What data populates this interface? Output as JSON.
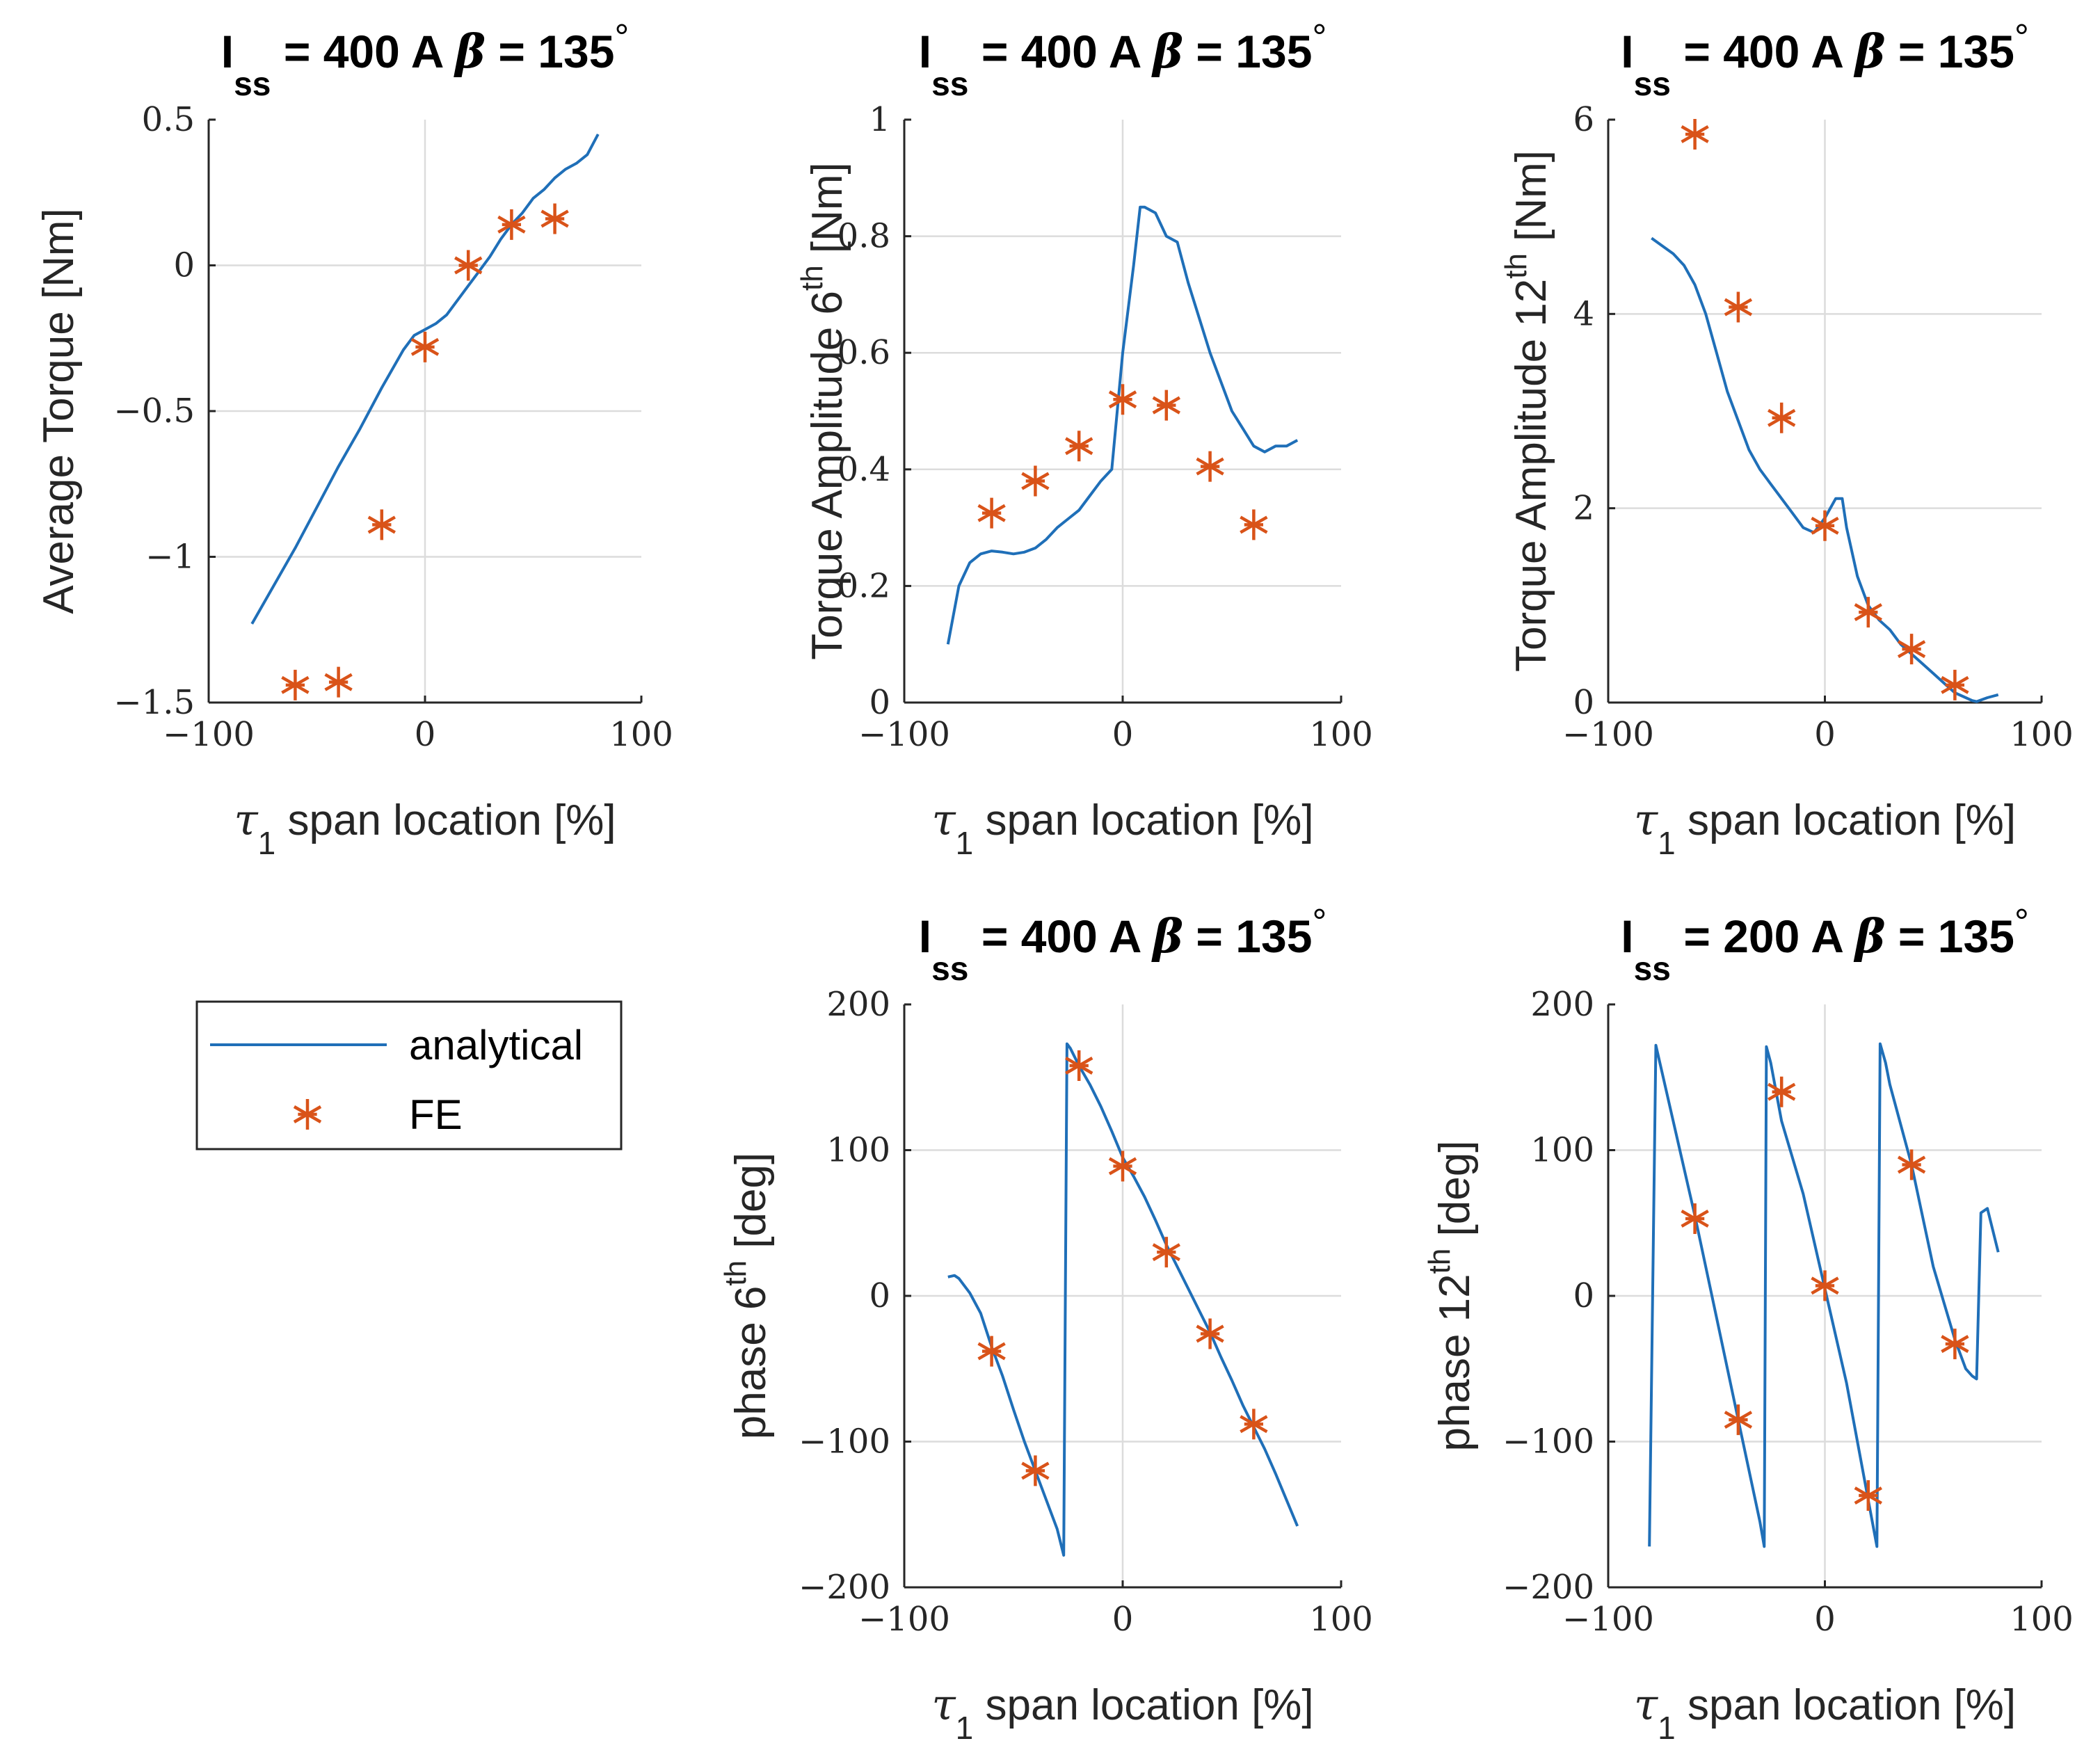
{
  "colors": {
    "analytical": "#1f6fb8",
    "fe": "#d95319"
  },
  "legend": {
    "analytical_label": "analytical",
    "fe_label": "FE"
  },
  "chart_data": [
    {
      "type": "line",
      "title": {
        "main": "I",
        "sub": "ss",
        "rest": " = 400 A ",
        "greek": "β",
        "value": " = 135",
        "deg": "°"
      },
      "xlabel": {
        "sym": "τ",
        "sub": "1",
        "rest": " span location [%]"
      },
      "ylabel": {
        "text": "Average Torque [Nm]",
        "sup": "",
        "after": ""
      },
      "xlim": [
        -100,
        100
      ],
      "ylim": [
        -1.5,
        0.5
      ],
      "xticks": [
        -100,
        0,
        100
      ],
      "xtick_labels": [
        "−100",
        "0",
        "100"
      ],
      "yticks": [
        -1.5,
        -1,
        -0.5,
        0,
        0.5
      ],
      "ytick_labels": [
        "−1.5",
        "−1",
        "−0.5",
        "0",
        "0.5"
      ],
      "series": [
        {
          "name": "analytical",
          "x": [
            -80,
            -70,
            -60,
            -50,
            -40,
            -30,
            -20,
            -10,
            -5,
            0,
            5,
            10,
            15,
            20,
            25,
            30,
            35,
            40,
            45,
            50,
            55,
            60,
            65,
            70,
            75,
            80
          ],
          "y": [
            -1.23,
            -1.1,
            -0.97,
            -0.83,
            -0.69,
            -0.56,
            -0.42,
            -0.29,
            -0.24,
            -0.22,
            -0.2,
            -0.17,
            -0.12,
            -0.07,
            -0.02,
            0.03,
            0.09,
            0.14,
            0.18,
            0.23,
            0.26,
            0.3,
            0.33,
            0.35,
            0.38,
            0.45
          ]
        },
        {
          "name": "FE",
          "x": [
            -60,
            -40,
            -20,
            0,
            20,
            40,
            60
          ],
          "y": [
            -1.44,
            -1.43,
            -0.89,
            -0.28,
            0.0,
            0.14,
            0.16
          ]
        }
      ]
    },
    {
      "type": "line",
      "title": {
        "main": "I",
        "sub": "ss",
        "rest": " = 400 A ",
        "greek": "β",
        "value": " = 135",
        "deg": "°"
      },
      "xlabel": {
        "sym": "τ",
        "sub": "1",
        "rest": " span location [%]"
      },
      "ylabel": {
        "text": "Torque Amplitude 6",
        "sup": "th",
        "after": " [Nm]"
      },
      "xlim": [
        -100,
        100
      ],
      "ylim": [
        0,
        1
      ],
      "xticks": [
        -100,
        0,
        100
      ],
      "xtick_labels": [
        "−100",
        "0",
        "100"
      ],
      "yticks": [
        0,
        0.2,
        0.4,
        0.6,
        0.8,
        1
      ],
      "ytick_labels": [
        "0",
        "0.2",
        "0.4",
        "0.6",
        "0.8",
        "1"
      ],
      "series": [
        {
          "name": "analytical",
          "x": [
            -80,
            -75,
            -70,
            -65,
            -60,
            -55,
            -50,
            -45,
            -40,
            -35,
            -30,
            -25,
            -20,
            -15,
            -10,
            -5,
            0,
            5,
            8,
            10,
            15,
            20,
            25,
            30,
            35,
            40,
            45,
            50,
            55,
            60,
            65,
            70,
            75,
            80
          ],
          "y": [
            0.1,
            0.2,
            0.24,
            0.255,
            0.26,
            0.258,
            0.255,
            0.258,
            0.265,
            0.28,
            0.3,
            0.315,
            0.33,
            0.355,
            0.38,
            0.4,
            0.6,
            0.75,
            0.85,
            0.85,
            0.84,
            0.8,
            0.79,
            0.72,
            0.66,
            0.6,
            0.55,
            0.5,
            0.47,
            0.44,
            0.43,
            0.44,
            0.44,
            0.45
          ]
        },
        {
          "name": "FE",
          "x": [
            -60,
            -40,
            -20,
            0,
            20,
            40,
            60
          ],
          "y": [
            0.325,
            0.38,
            0.44,
            0.52,
            0.51,
            0.405,
            0.305
          ]
        }
      ]
    },
    {
      "type": "line",
      "title": {
        "main": "I",
        "sub": "ss",
        "rest": " = 400 A ",
        "greek": "β",
        "value": " = 135",
        "deg": "°"
      },
      "xlabel": {
        "sym": "τ",
        "sub": "1",
        "rest": " span location [%]"
      },
      "ylabel": {
        "text": "Torque Amplitude 12",
        "sup": "th",
        "after": " [Nm]"
      },
      "xlim": [
        -100,
        100
      ],
      "ylim": [
        0,
        6
      ],
      "xticks": [
        -100,
        0,
        100
      ],
      "xtick_labels": [
        "−100",
        "0",
        "100"
      ],
      "yticks": [
        0,
        2,
        4,
        6
      ],
      "ytick_labels": [
        "0",
        "2",
        "4",
        "6"
      ],
      "series": [
        {
          "name": "analytical",
          "x": [
            -80,
            -75,
            -70,
            -65,
            -60,
            -55,
            -50,
            -45,
            -40,
            -35,
            -30,
            -25,
            -20,
            -15,
            -10,
            -5,
            0,
            5,
            8,
            10,
            15,
            20,
            25,
            30,
            35,
            40,
            45,
            50,
            55,
            60,
            65,
            68,
            70,
            75,
            80
          ],
          "y": [
            4.78,
            4.7,
            4.62,
            4.5,
            4.3,
            4.0,
            3.6,
            3.2,
            2.9,
            2.6,
            2.4,
            2.25,
            2.1,
            1.95,
            1.8,
            1.75,
            1.9,
            2.1,
            2.1,
            1.8,
            1.3,
            1.0,
            0.85,
            0.75,
            0.6,
            0.5,
            0.4,
            0.3,
            0.2,
            0.1,
            0.05,
            0.02,
            0.01,
            0.05,
            0.08
          ]
        },
        {
          "name": "FE",
          "x": [
            -60,
            -40,
            -20,
            0,
            20,
            40,
            60
          ],
          "y": [
            5.85,
            4.07,
            2.93,
            1.82,
            0.93,
            0.55,
            0.18
          ]
        }
      ]
    },
    {
      "type": "line",
      "title": {
        "main": "I",
        "sub": "ss",
        "rest": " = 400 A ",
        "greek": "β",
        "value": " = 135",
        "deg": "°"
      },
      "xlabel": {
        "sym": "τ",
        "sub": "1",
        "rest": " span location [%]"
      },
      "ylabel": {
        "text": "phase 6",
        "sup": "th",
        "after": " [deg]"
      },
      "xlim": [
        -100,
        100
      ],
      "ylim": [
        -200,
        200
      ],
      "xticks": [
        -100,
        0,
        100
      ],
      "xtick_labels": [
        "−100",
        "0",
        "100"
      ],
      "yticks": [
        -200,
        -100,
        0,
        100,
        200
      ],
      "ytick_labels": [
        "−200",
        "−100",
        "0",
        "100",
        "200"
      ],
      "series": [
        {
          "name": "analytical",
          "x": [
            -80,
            -77,
            -75,
            -70,
            -65,
            -60,
            -55,
            -50,
            -45,
            -40,
            -35,
            -30,
            -27,
            -25.5,
            -24,
            -20,
            -15,
            -10,
            -5,
            0,
            5,
            10,
            15,
            20,
            25,
            30,
            35,
            40,
            45,
            50,
            55,
            60,
            65,
            70,
            75,
            80
          ],
          "y": [
            13,
            14,
            12,
            2,
            -12,
            -35,
            -55,
            -78,
            -100,
            -120,
            -140,
            -160,
            -178,
            173,
            170,
            158,
            145,
            130,
            113,
            95,
            82,
            68,
            52,
            35,
            20,
            5,
            -10,
            -25,
            -42,
            -58,
            -75,
            -90,
            -105,
            -122,
            -140,
            -158
          ]
        },
        {
          "name": "FE",
          "x": [
            -60,
            -40,
            -20,
            0,
            20,
            40,
            60
          ],
          "y": [
            -38,
            -120,
            158,
            89,
            30,
            -26,
            -88
          ]
        }
      ]
    },
    {
      "type": "line",
      "title": {
        "main": "I",
        "sub": "ss",
        "rest": " = 200 A ",
        "greek": "β",
        "value": " = 135",
        "deg": "°"
      },
      "xlabel": {
        "sym": "τ",
        "sub": "1",
        "rest": " span location [%]"
      },
      "ylabel": {
        "text": "phase 12",
        "sup": "th",
        "after": " [deg]"
      },
      "xlim": [
        -100,
        100
      ],
      "ylim": [
        -200,
        200
      ],
      "xticks": [
        -100,
        0,
        100
      ],
      "xtick_labels": [
        "−100",
        "0",
        "100"
      ],
      "yticks": [
        -200,
        -100,
        0,
        100,
        200
      ],
      "ytick_labels": [
        "−200",
        "−100",
        "0",
        "100",
        "200"
      ],
      "series": [
        {
          "name": "analytical",
          "x": [
            -81,
            -78,
            -70,
            -60,
            -50,
            -40,
            -30,
            -28,
            -27,
            -25,
            -20,
            -10,
            0,
            10,
            20,
            24,
            25.5,
            28,
            30,
            40,
            50,
            60,
            65,
            68,
            70,
            72,
            75,
            80
          ],
          "y": [
            -172,
            172,
            120,
            55,
            -15,
            -85,
            -155,
            -172,
            171,
            160,
            120,
            70,
            5,
            -60,
            -140,
            -172,
            173,
            160,
            145,
            90,
            20,
            -30,
            -50,
            -55,
            -57,
            57,
            60,
            30
          ]
        },
        {
          "name": "FE",
          "x": [
            -60,
            -40,
            -20,
            0,
            20,
            40,
            60
          ],
          "y": [
            53,
            -85,
            140,
            7,
            -137,
            90,
            -33
          ]
        }
      ]
    }
  ]
}
